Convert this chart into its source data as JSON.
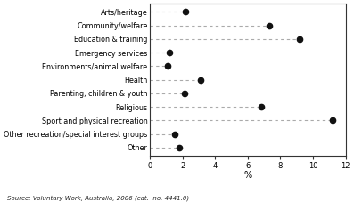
{
  "categories": [
    "Arts/heritage",
    "Community/welfare",
    "Education & training",
    "Emergency services",
    "Environments/animal welfare",
    "Health",
    "Parenting, children & youth",
    "Religious",
    "Sport and physical recreation",
    "Other recreation/special interest groups",
    "Other"
  ],
  "values": [
    2.2,
    7.3,
    9.2,
    1.2,
    1.1,
    3.1,
    2.1,
    6.8,
    11.2,
    1.5,
    1.8
  ],
  "xlabel": "%",
  "xlim": [
    0,
    12
  ],
  "xticks": [
    0,
    2,
    4,
    6,
    8,
    10,
    12
  ],
  "marker_color": "#111111",
  "marker_size": 4.5,
  "line_color": "#aaaaaa",
  "line_style": "--",
  "line_width": 0.8,
  "source_text": "Source: Voluntary Work, Australia, 2006 (cat.  no. 4441.0)",
  "background_color": "#ffffff",
  "label_fontsize": 5.8,
  "tick_fontsize": 6.0,
  "xlabel_fontsize": 7.0
}
